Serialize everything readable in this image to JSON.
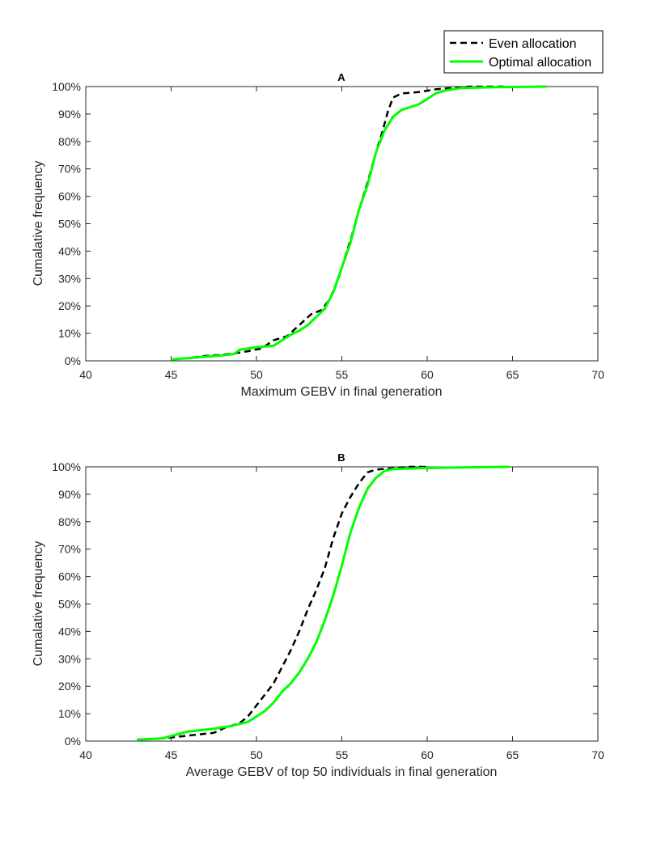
{
  "legend": {
    "entries": [
      {
        "label": "Even allocation",
        "color": "#000000",
        "dash": "dashed"
      },
      {
        "label": "Optimal allocation",
        "color": "#00ff00",
        "dash": "solid"
      }
    ]
  },
  "chart_data": [
    {
      "type": "line",
      "title": "A",
      "xlabel": "Maximum GEBV in final generation",
      "ylabel": "Cumalative frequency",
      "xlim": [
        40,
        70
      ],
      "ylim": [
        0,
        100
      ],
      "xticks": [
        "40",
        "45",
        "50",
        "55",
        "60",
        "65",
        "70"
      ],
      "yticks": [
        "0%",
        "10%",
        "20%",
        "30%",
        "40%",
        "50%",
        "60%",
        "70%",
        "80%",
        "90%",
        "100%"
      ],
      "grid": false,
      "series": [
        {
          "name": "Even allocation",
          "color": "#000000",
          "x": [
            45.0,
            46.0,
            47.0,
            48.0,
            48.8,
            49.5,
            50.3,
            51.0,
            51.8,
            52.5,
            53.2,
            53.8,
            54.3,
            54.8,
            55.2,
            55.6,
            56.0,
            56.5,
            57.0,
            57.4,
            57.7,
            58.0,
            58.5,
            59.5,
            60.5,
            61.5,
            62.5,
            64.5
          ],
          "y": [
            0.5,
            1.0,
            1.8,
            2.2,
            2.8,
            3.5,
            4.5,
            7.5,
            9.0,
            13.0,
            17.0,
            18.5,
            22.5,
            30.0,
            38.0,
            46.0,
            55.0,
            65.0,
            76.0,
            84.0,
            91.0,
            96.0,
            97.5,
            98.0,
            99.0,
            99.5,
            100.0,
            100.0
          ]
        },
        {
          "name": "Optimal allocation",
          "color": "#00ff00",
          "x": [
            45.0,
            46.0,
            47.0,
            48.0,
            48.7,
            49.0,
            50.0,
            51.0,
            51.5,
            52.0,
            52.5,
            53.0,
            53.5,
            54.0,
            54.5,
            55.0,
            55.5,
            56.0,
            56.5,
            57.0,
            57.5,
            58.0,
            58.5,
            59.0,
            59.5,
            60.0,
            60.5,
            61.0,
            62.0,
            64.0,
            67.0
          ],
          "y": [
            0.5,
            1.0,
            1.5,
            2.0,
            2.5,
            4.0,
            5.0,
            5.5,
            7.5,
            9.5,
            11.0,
            13.0,
            16.0,
            19.0,
            25.0,
            34.0,
            43.0,
            55.0,
            64.0,
            76.0,
            84.0,
            89.0,
            91.5,
            92.5,
            93.5,
            95.5,
            97.5,
            98.5,
            99.5,
            99.8,
            100.0
          ]
        }
      ]
    },
    {
      "type": "line",
      "title": "B",
      "xlabel": "Average GEBV of top 50 individuals in final generation",
      "ylabel": "Cumalative frequency",
      "xlim": [
        40,
        70
      ],
      "ylim": [
        0,
        100
      ],
      "xticks": [
        "40",
        "45",
        "50",
        "55",
        "60",
        "65",
        "70"
      ],
      "yticks": [
        "0%",
        "10%",
        "20%",
        "30%",
        "40%",
        "50%",
        "60%",
        "70%",
        "80%",
        "90%",
        "100%"
      ],
      "grid": false,
      "series": [
        {
          "name": "Even allocation",
          "color": "#000000",
          "x": [
            43.0,
            44.5,
            46.0,
            47.5,
            48.2,
            49.0,
            49.5,
            50.0,
            50.5,
            51.0,
            51.5,
            52.0,
            52.5,
            53.0,
            53.5,
            54.0,
            54.5,
            55.0,
            55.5,
            56.0,
            56.5,
            57.0,
            58.0,
            59.0,
            60.0
          ],
          "y": [
            0.5,
            1.0,
            2.0,
            3.0,
            5.0,
            6.5,
            9.0,
            13.0,
            17.0,
            21.0,
            27.0,
            33.0,
            40.0,
            48.0,
            55.0,
            63.0,
            74.0,
            83.0,
            89.0,
            94.0,
            98.0,
            99.0,
            99.5,
            100.0,
            100.0
          ]
        },
        {
          "name": "Optimal allocation",
          "color": "#00ff00",
          "x": [
            43.0,
            44.5,
            46.0,
            47.5,
            48.5,
            49.5,
            50.5,
            51.0,
            51.5,
            52.0,
            52.5,
            53.0,
            53.5,
            54.0,
            54.5,
            55.0,
            55.5,
            56.0,
            56.5,
            57.0,
            57.5,
            58.0,
            60.0,
            62.0,
            64.8
          ],
          "y": [
            0.5,
            1.0,
            3.5,
            4.5,
            5.5,
            7.0,
            11.0,
            14.0,
            18.0,
            21.0,
            25.0,
            30.0,
            36.0,
            44.0,
            53.0,
            64.0,
            76.0,
            85.0,
            92.0,
            96.0,
            98.5,
            99.2,
            99.6,
            99.8,
            100.0
          ]
        }
      ]
    }
  ]
}
